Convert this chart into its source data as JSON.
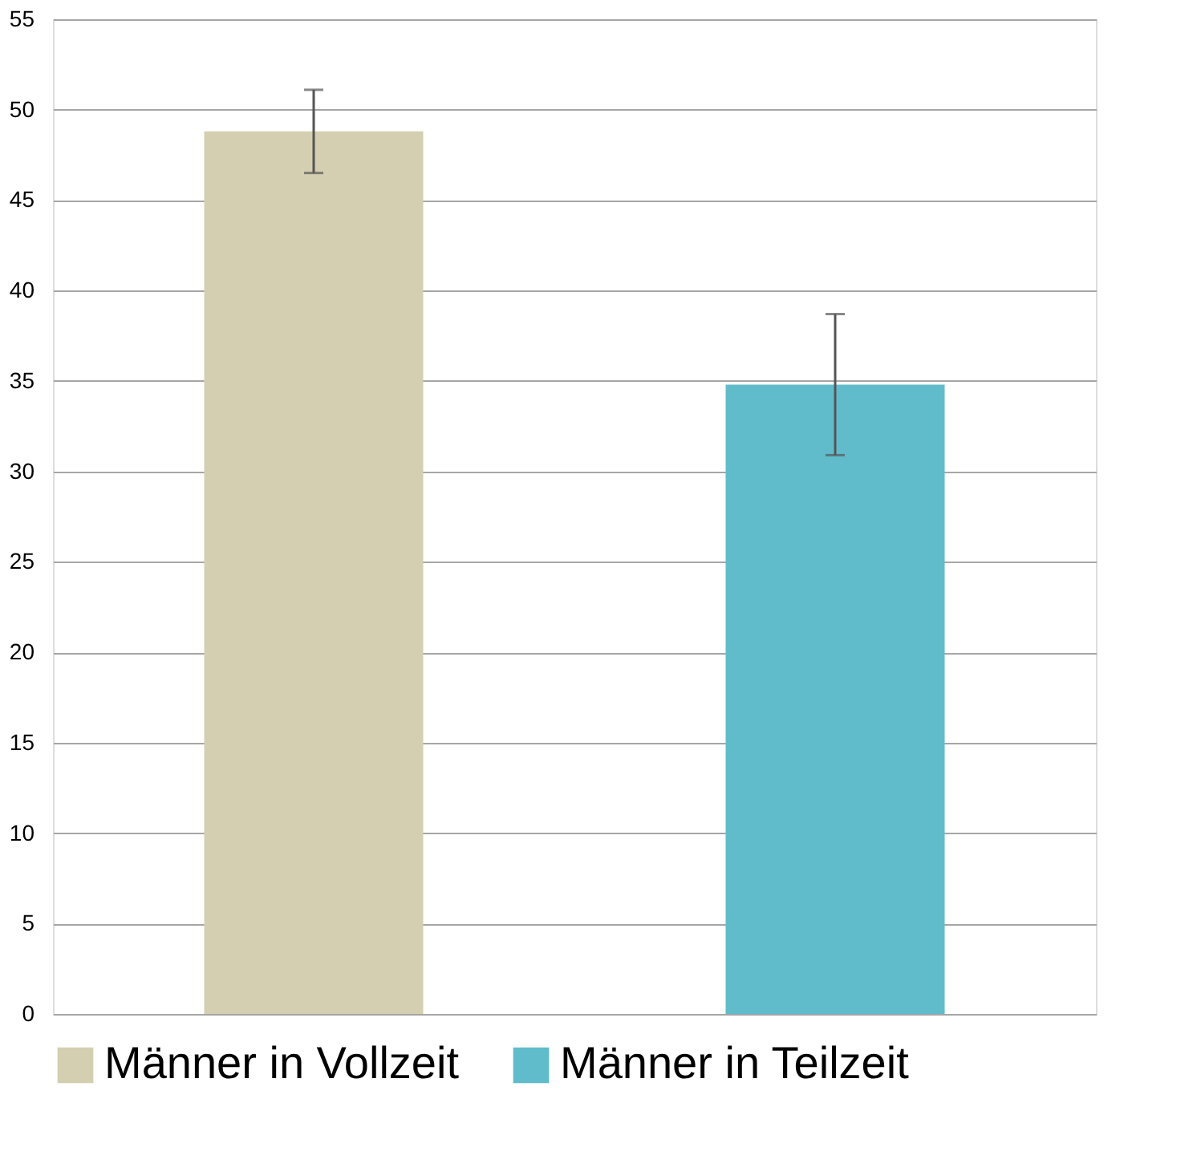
{
  "chart_data": {
    "type": "bar",
    "categories": [
      null,
      null
    ],
    "series": [
      {
        "name": "Männer in Vollzeit",
        "color": "#d4cfb0",
        "values": [
          48.8,
          null
        ],
        "errors": [
          2.3,
          null
        ]
      },
      {
        "name": "Männer in Teilzeit",
        "color": "#60bccb",
        "values": [
          null,
          34.8
        ],
        "errors": [
          null,
          3.9
        ]
      }
    ],
    "ylim": [
      0,
      55
    ],
    "yticks": [
      0,
      5,
      10,
      15,
      20,
      25,
      30,
      35,
      40,
      45,
      50,
      55
    ],
    "grid": "y",
    "legend": "bottom",
    "tick_labels": "y"
  }
}
